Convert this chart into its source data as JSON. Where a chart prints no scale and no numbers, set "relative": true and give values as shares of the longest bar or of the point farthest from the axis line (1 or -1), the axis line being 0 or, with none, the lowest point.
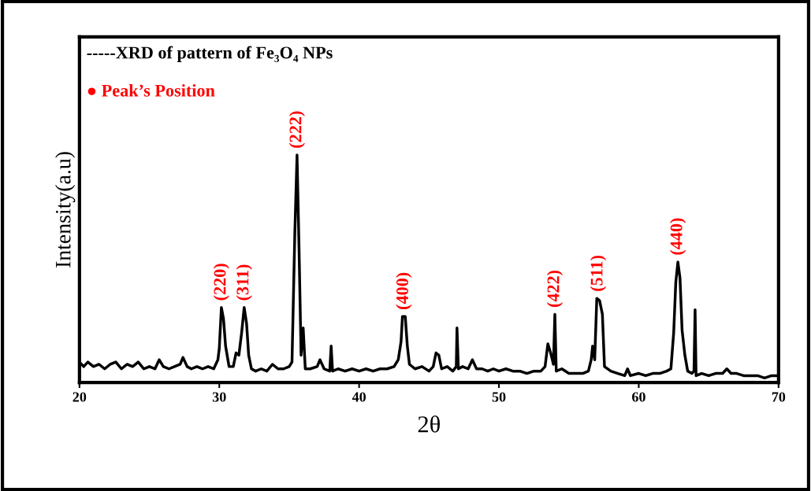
{
  "chart_data": {
    "type": "line",
    "relative": true,
    "xlabel": "2θ",
    "ylabel": "Intensity(a.u)",
    "xlim": [
      20,
      70
    ],
    "xticks": [
      20,
      30,
      40,
      50,
      60,
      70
    ],
    "tick_labels": "x",
    "grid": false,
    "marker": "none",
    "line_style": "solid",
    "series": [
      {
        "color": "#000000",
        "x": [
          20.0,
          20.3,
          20.6,
          21.0,
          21.4,
          21.8,
          22.2,
          22.6,
          23.0,
          23.4,
          23.8,
          24.2,
          24.6,
          25.0,
          25.4,
          25.7,
          26.0,
          26.4,
          26.8,
          27.2,
          27.4,
          27.7,
          28.0,
          28.4,
          28.8,
          29.2,
          29.6,
          29.9,
          30.0,
          30.15,
          30.3,
          30.45,
          30.7,
          31.0,
          31.2,
          31.4,
          31.6,
          31.78,
          31.95,
          32.1,
          32.3,
          32.6,
          33.0,
          33.4,
          33.8,
          34.2,
          34.6,
          35.0,
          35.2,
          35.4,
          35.56,
          35.7,
          35.85,
          36.0,
          36.15,
          36.5,
          37.0,
          37.2,
          37.5,
          37.9,
          38.0,
          38.1,
          38.5,
          39.0,
          39.5,
          40.0,
          40.5,
          41.0,
          41.5,
          42.0,
          42.5,
          42.8,
          43.0,
          43.1,
          43.3,
          43.45,
          43.6,
          44.0,
          44.5,
          45.0,
          45.3,
          45.5,
          45.7,
          45.9,
          46.3,
          46.7,
          46.95,
          47.0,
          47.1,
          47.4,
          47.8,
          48.1,
          48.4,
          48.8,
          49.2,
          49.6,
          50.0,
          50.5,
          51.0,
          51.5,
          52.0,
          52.5,
          53.0,
          53.3,
          53.5,
          53.7,
          53.9,
          54.0,
          54.1,
          54.5,
          55.0,
          55.5,
          56.0,
          56.4,
          56.6,
          56.7,
          56.85,
          57.0,
          57.2,
          57.4,
          57.55,
          58.0,
          58.5,
          59.0,
          59.2,
          59.4,
          60.0,
          60.5,
          61.0,
          61.5,
          62.0,
          62.3,
          62.5,
          62.65,
          62.8,
          62.95,
          63.1,
          63.3,
          63.5,
          63.8,
          63.95,
          64.03,
          64.1,
          64.5,
          65.0,
          65.5,
          66.0,
          66.3,
          66.6,
          67.0,
          67.5,
          68.0,
          68.5,
          69.0,
          69.5,
          70.0
        ],
        "values": [
          0.09,
          0.07,
          0.09,
          0.07,
          0.08,
          0.06,
          0.08,
          0.09,
          0.06,
          0.08,
          0.07,
          0.09,
          0.06,
          0.07,
          0.06,
          0.1,
          0.07,
          0.06,
          0.07,
          0.08,
          0.11,
          0.07,
          0.06,
          0.07,
          0.06,
          0.07,
          0.06,
          0.1,
          0.15,
          0.33,
          0.28,
          0.16,
          0.07,
          0.07,
          0.13,
          0.12,
          0.22,
          0.33,
          0.26,
          0.12,
          0.06,
          0.05,
          0.06,
          0.05,
          0.08,
          0.06,
          0.06,
          0.07,
          0.09,
          0.65,
          1.0,
          0.6,
          0.12,
          0.24,
          0.06,
          0.06,
          0.07,
          0.1,
          0.06,
          0.05,
          0.16,
          0.05,
          0.06,
          0.05,
          0.06,
          0.05,
          0.06,
          0.05,
          0.06,
          0.06,
          0.07,
          0.1,
          0.18,
          0.29,
          0.29,
          0.16,
          0.08,
          0.06,
          0.07,
          0.05,
          0.07,
          0.13,
          0.12,
          0.06,
          0.07,
          0.05,
          0.07,
          0.24,
          0.06,
          0.07,
          0.06,
          0.1,
          0.06,
          0.06,
          0.05,
          0.06,
          0.05,
          0.06,
          0.05,
          0.05,
          0.04,
          0.05,
          0.05,
          0.07,
          0.17,
          0.13,
          0.08,
          0.3,
          0.05,
          0.06,
          0.04,
          0.04,
          0.04,
          0.05,
          0.1,
          0.16,
          0.1,
          0.37,
          0.36,
          0.3,
          0.07,
          0.05,
          0.04,
          0.03,
          0.06,
          0.03,
          0.04,
          0.03,
          0.04,
          0.04,
          0.05,
          0.06,
          0.22,
          0.44,
          0.53,
          0.46,
          0.23,
          0.12,
          0.05,
          0.04,
          0.05,
          0.32,
          0.03,
          0.04,
          0.03,
          0.04,
          0.04,
          0.06,
          0.04,
          0.04,
          0.03,
          0.03,
          0.03,
          0.02,
          0.03,
          0.03
        ]
      }
    ],
    "annotations": [
      "-----XRD of pattern of Fe₃O₄ NPs",
      "● Peak’s Position",
      {
        "text": "(220)",
        "x": 30.15,
        "y": 0.33
      },
      {
        "text": "(311)",
        "x": 31.78,
        "y": 0.33
      },
      {
        "text": "(222)",
        "x": 35.56,
        "y": 1.0
      },
      {
        "text": "(400)",
        "x": 43.2,
        "y": 0.29
      },
      {
        "text": "(422)",
        "x": 54.0,
        "y": 0.3
      },
      {
        "text": "(511)",
        "x": 57.1,
        "y": 0.37
      },
      {
        "text": "(440)",
        "x": 62.8,
        "y": 0.53
      }
    ]
  }
}
